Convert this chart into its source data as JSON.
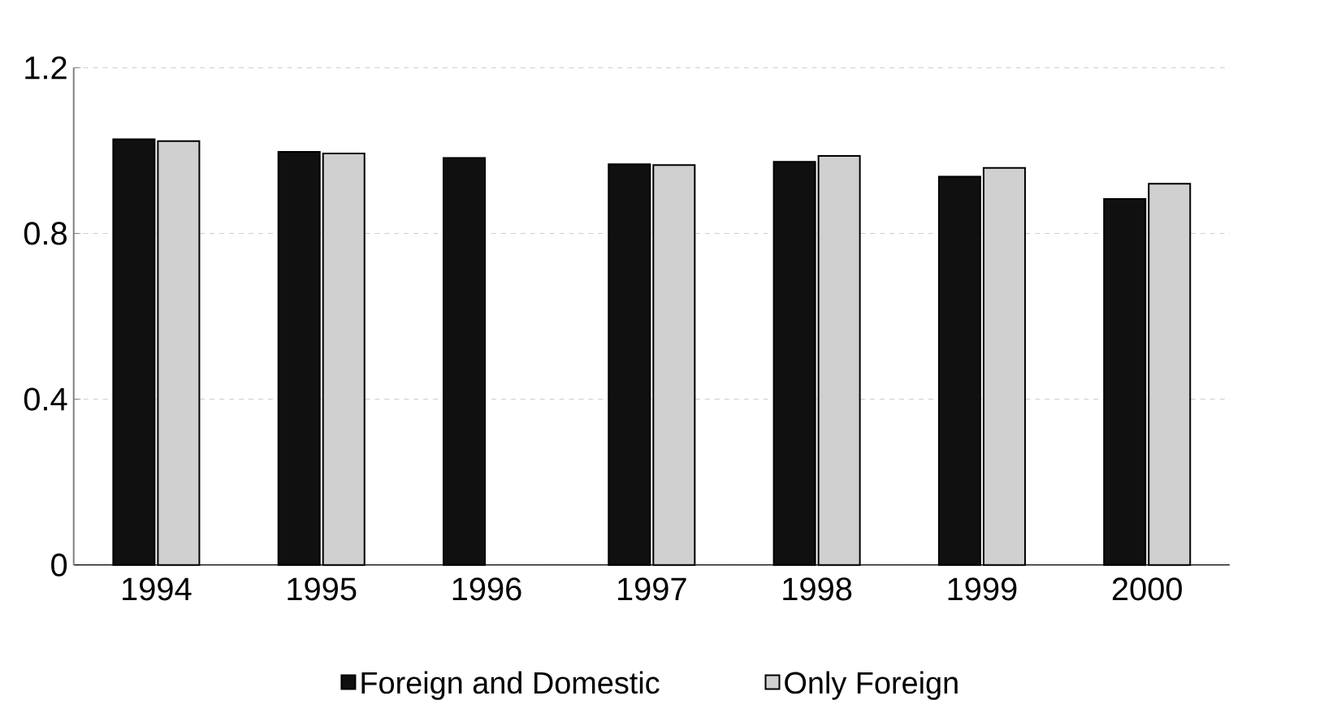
{
  "chart_data": {
    "type": "bar",
    "categories": [
      "1994",
      "1995",
      "1996",
      "1997",
      "1998",
      "1999",
      "2000"
    ],
    "series": [
      {
        "name": "Foreign and Domestic",
        "color": "#101010",
        "values": [
          1.027,
          0.997,
          0.982,
          0.967,
          0.973,
          0.937,
          0.883
        ]
      },
      {
        "name": "Only Foreign",
        "color": "#d0d0d0",
        "values": [
          1.023,
          0.993,
          null,
          0.965,
          0.987,
          0.958,
          0.92
        ]
      }
    ],
    "ylim": [
      0,
      1.2
    ],
    "yticks": [
      0,
      0.4,
      0.8,
      1.2
    ],
    "grid": "y",
    "legend": "bottom"
  }
}
